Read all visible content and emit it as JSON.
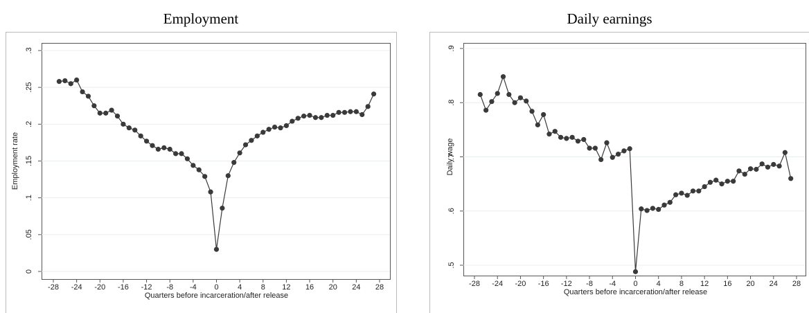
{
  "chart_data": [
    {
      "type": "line",
      "title": "Employment",
      "xlabel": "Quarters before incarceration/after release",
      "ylabel": "Employment rate",
      "x": [
        -27,
        -26,
        -25,
        -24,
        -23,
        -22,
        -21,
        -20,
        -19,
        -18,
        -17,
        -16,
        -15,
        -14,
        -13,
        -12,
        -11,
        -10,
        -9,
        -8,
        -7,
        -6,
        -5,
        -4,
        -3,
        -2,
        -1,
        0,
        1,
        2,
        3,
        4,
        5,
        6,
        7,
        8,
        9,
        10,
        11,
        12,
        13,
        14,
        15,
        16,
        17,
        18,
        19,
        20,
        21,
        22,
        23,
        24,
        25,
        26,
        27
      ],
      "values": [
        0.258,
        0.259,
        0.255,
        0.26,
        0.244,
        0.238,
        0.225,
        0.215,
        0.215,
        0.219,
        0.211,
        0.2,
        0.195,
        0.192,
        0.184,
        0.177,
        0.171,
        0.166,
        0.168,
        0.166,
        0.16,
        0.16,
        0.153,
        0.144,
        0.138,
        0.129,
        0.108,
        0.03,
        0.086,
        0.13,
        0.148,
        0.161,
        0.172,
        0.178,
        0.184,
        0.189,
        0.193,
        0.196,
        0.195,
        0.198,
        0.204,
        0.208,
        0.211,
        0.212,
        0.209,
        0.209,
        0.212,
        0.212,
        0.216,
        0.216,
        0.217,
        0.217,
        0.213,
        0.224,
        0.241
      ],
      "color": "#3a3a3a",
      "marker": "circle",
      "xlim": [
        -28,
        28
      ],
      "xticks": [
        -28,
        -24,
        -20,
        -16,
        -12,
        -8,
        -4,
        0,
        4,
        8,
        12,
        16,
        20,
        24,
        28
      ],
      "ylim": [
        0,
        0.3
      ],
      "yticks": [
        0,
        {
          "value": 0.05,
          "label": ".05"
        },
        {
          "value": 0.1,
          "label": ".1"
        },
        {
          "value": 0.15,
          "label": ".15"
        },
        {
          "value": 0.2,
          "label": ".2"
        },
        {
          "value": 0.25,
          "label": ".25"
        },
        {
          "value": 0.3,
          "label": ".3"
        }
      ],
      "grid": true
    },
    {
      "type": "line",
      "title": "Daily earnings",
      "xlabel": "Quarters before incarceration/after release",
      "ylabel": "Daily wage",
      "x": [
        -27,
        -26,
        -25,
        -24,
        -23,
        -22,
        -21,
        -20,
        -19,
        -18,
        -17,
        -16,
        -15,
        -14,
        -13,
        -12,
        -11,
        -10,
        -9,
        -8,
        -7,
        -6,
        -5,
        -4,
        -3,
        -2,
        -1,
        0,
        1,
        2,
        3,
        4,
        5,
        6,
        7,
        8,
        9,
        10,
        11,
        12,
        13,
        14,
        15,
        16,
        17,
        18,
        19,
        20,
        21,
        22,
        23,
        24,
        25,
        26,
        27
      ],
      "values": [
        0.815,
        0.786,
        0.802,
        0.817,
        0.848,
        0.815,
        0.8,
        0.809,
        0.803,
        0.784,
        0.759,
        0.778,
        0.742,
        0.747,
        0.736,
        0.734,
        0.736,
        0.729,
        0.732,
        0.716,
        0.716,
        0.695,
        0.726,
        0.699,
        0.705,
        0.711,
        0.715,
        0.488,
        0.604,
        0.601,
        0.605,
        0.603,
        0.611,
        0.616,
        0.63,
        0.633,
        0.629,
        0.637,
        0.637,
        0.645,
        0.653,
        0.657,
        0.65,
        0.655,
        0.655,
        0.674,
        0.668,
        0.678,
        0.677,
        0.687,
        0.681,
        0.686,
        0.683,
        0.708,
        0.66
      ],
      "color": "#3a3a3a",
      "marker": "circle",
      "xlim": [
        -28,
        28
      ],
      "xticks": [
        -28,
        -24,
        -20,
        -16,
        -12,
        -8,
        -4,
        0,
        4,
        8,
        12,
        16,
        20,
        24,
        28
      ],
      "ylim": [
        0.5,
        0.9
      ],
      "yticks": [
        {
          "value": 0.5,
          "label": ".5"
        },
        {
          "value": 0.6,
          "label": ".6"
        },
        {
          "value": 0.7,
          "label": ".7"
        },
        {
          "value": 0.8,
          "label": ".8"
        },
        {
          "value": 0.9,
          "label": ".9"
        }
      ],
      "grid": true
    }
  ]
}
